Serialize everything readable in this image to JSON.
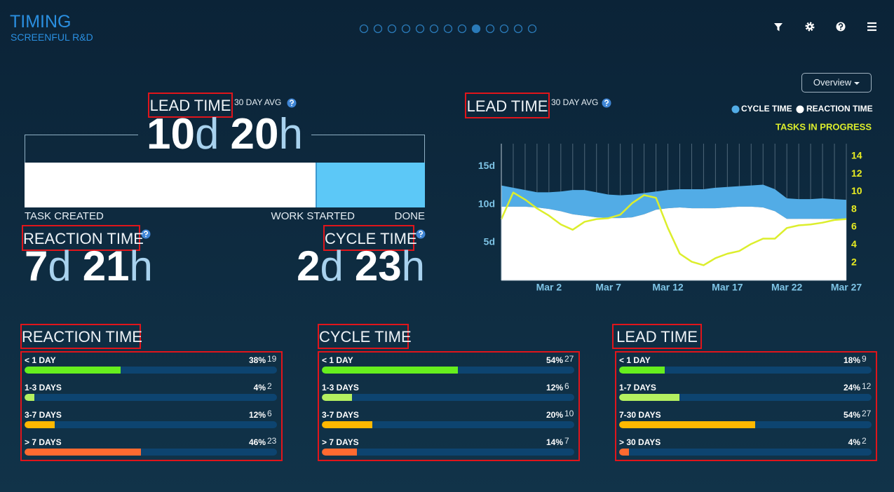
{
  "header": {
    "title": "TIMING",
    "subtitle": "SCREENFUL R&D"
  },
  "summary": {
    "lead_time": {
      "label": "LEAD TIME",
      "note": "30 DAY AVG",
      "days": 10,
      "day_unit": "d",
      "hours": 20,
      "hour_unit": "h"
    },
    "stages": [
      "TASK CREATED",
      "WORK STARTED",
      "DONE"
    ],
    "stage_colors": [
      "#ffffff",
      "#5cc8f7"
    ],
    "reaction_time": {
      "label": "REACTION TIME",
      "days": 7,
      "day_unit": "d",
      "hours": 21,
      "hour_unit": "h"
    },
    "cycle_time": {
      "label": "CYCLE TIME",
      "days": 2,
      "day_unit": "d",
      "hours": 23,
      "hour_unit": "h"
    }
  },
  "chart_data": {
    "type": "area",
    "title": "LEAD TIME",
    "note": "30 DAY AVG",
    "button": "Overview",
    "stacked": true,
    "legend": "top-right",
    "grid": true,
    "x": [
      -2,
      -1,
      0,
      1,
      2,
      3,
      4,
      5,
      6,
      7,
      8,
      9,
      10,
      11,
      12,
      13,
      14,
      15,
      16,
      17,
      18,
      19,
      20,
      21,
      22,
      23,
      24,
      25,
      26,
      27
    ],
    "xlim": [
      -2,
      27
    ],
    "xticks": [
      {
        "value": 2,
        "label": "Mar 2"
      },
      {
        "value": 7,
        "label": "Mar 7"
      },
      {
        "value": 12,
        "label": "Mar 12"
      },
      {
        "value": 17,
        "label": "Mar 17"
      },
      {
        "value": 22,
        "label": "Mar 22"
      },
      {
        "value": 27,
        "label": "Mar 27"
      }
    ],
    "ylim": [
      0,
      18
    ],
    "yticks": [
      {
        "value": 5,
        "label": "5d"
      },
      {
        "value": 10,
        "label": "10d"
      },
      {
        "value": 15,
        "label": "15d"
      }
    ],
    "y2lim": [
      0,
      15.4
    ],
    "y2ticks": [
      2,
      4,
      6,
      8,
      10,
      12,
      14
    ],
    "series": [
      {
        "name": "REACTION TIME",
        "color": "#ffffff",
        "values": [
          9.7,
          9.7,
          9.7,
          9.6,
          9.4,
          9.1,
          8.7,
          8.5,
          8.3,
          8.2,
          8.2,
          8.3,
          8.7,
          9.3,
          9.5,
          9.6,
          9.5,
          9.5,
          9.5,
          9.6,
          9.7,
          9.7,
          9.6,
          9.1,
          8.1,
          8.1,
          8.1,
          8.1,
          8.1,
          8.0
        ]
      },
      {
        "name": "CYCLE TIME",
        "color": "#52ace6",
        "values": [
          2.8,
          2.5,
          2.2,
          2.0,
          2.2,
          2.6,
          3.2,
          3.4,
          3.3,
          3.1,
          3.0,
          3.0,
          2.8,
          2.4,
          2.4,
          2.4,
          2.5,
          2.5,
          2.7,
          2.7,
          2.7,
          2.8,
          3.0,
          2.9,
          2.7,
          2.6,
          2.6,
          2.7,
          2.6,
          2.6
        ]
      },
      {
        "name": "TASKS IN PROGRESS",
        "color": "#dcee2c",
        "axis": "y2",
        "type": "line",
        "values": [
          6.9,
          9.9,
          9.1,
          8.1,
          7.3,
          6.3,
          5.7,
          6.6,
          6.9,
          7.0,
          7.4,
          8.7,
          9.6,
          9.3,
          5.9,
          3.0,
          2.1,
          1.7,
          2.5,
          3.0,
          3.3,
          4.1,
          4.7,
          4.7,
          5.9,
          6.2,
          6.3,
          6.5,
          6.8,
          6.9
        ]
      }
    ]
  },
  "distributions": [
    {
      "title": "REACTION TIME",
      "rows": [
        {
          "label": "< 1 DAY",
          "share": 38,
          "share_label": "38%",
          "count": 19,
          "color": "#66ee1e"
        },
        {
          "label": "1-3 DAYS",
          "share": 4,
          "share_label": "4%",
          "count": 2,
          "color": "#b4f060"
        },
        {
          "label": "3-7 DAYS",
          "share": 12,
          "share_label": "12%",
          "count": 6,
          "color": "#ffb800"
        },
        {
          "label": "> 7 DAYS",
          "share": 46,
          "share_label": "46%",
          "count": 23,
          "color": "#ff6a30"
        }
      ]
    },
    {
      "title": "CYCLE TIME",
      "rows": [
        {
          "label": "< 1 DAY",
          "share": 54,
          "share_label": "54%",
          "count": 27,
          "color": "#66ee1e"
        },
        {
          "label": "1-3 DAYS",
          "share": 12,
          "share_label": "12%",
          "count": 6,
          "color": "#b4f060"
        },
        {
          "label": "3-7 DAYS",
          "share": 20,
          "share_label": "20%",
          "count": 10,
          "color": "#ffb800"
        },
        {
          "label": "> 7 DAYS",
          "share": 14,
          "share_label": "14%",
          "count": 7,
          "color": "#ff6a30"
        }
      ]
    },
    {
      "title": "LEAD TIME",
      "rows": [
        {
          "label": "< 1 DAY",
          "share": 18,
          "share_label": "18%",
          "count": 9,
          "color": "#66ee1e"
        },
        {
          "label": "1-7 DAYS",
          "share": 24,
          "share_label": "24%",
          "count": 12,
          "color": "#b4f060"
        },
        {
          "label": "7-30 DAYS",
          "share": 54,
          "share_label": "54%",
          "count": 27,
          "color": "#ffb800"
        },
        {
          "label": "> 30 DAYS",
          "share": 4,
          "share_label": "4%",
          "count": 2,
          "color": "#ff6a30"
        }
      ]
    }
  ]
}
